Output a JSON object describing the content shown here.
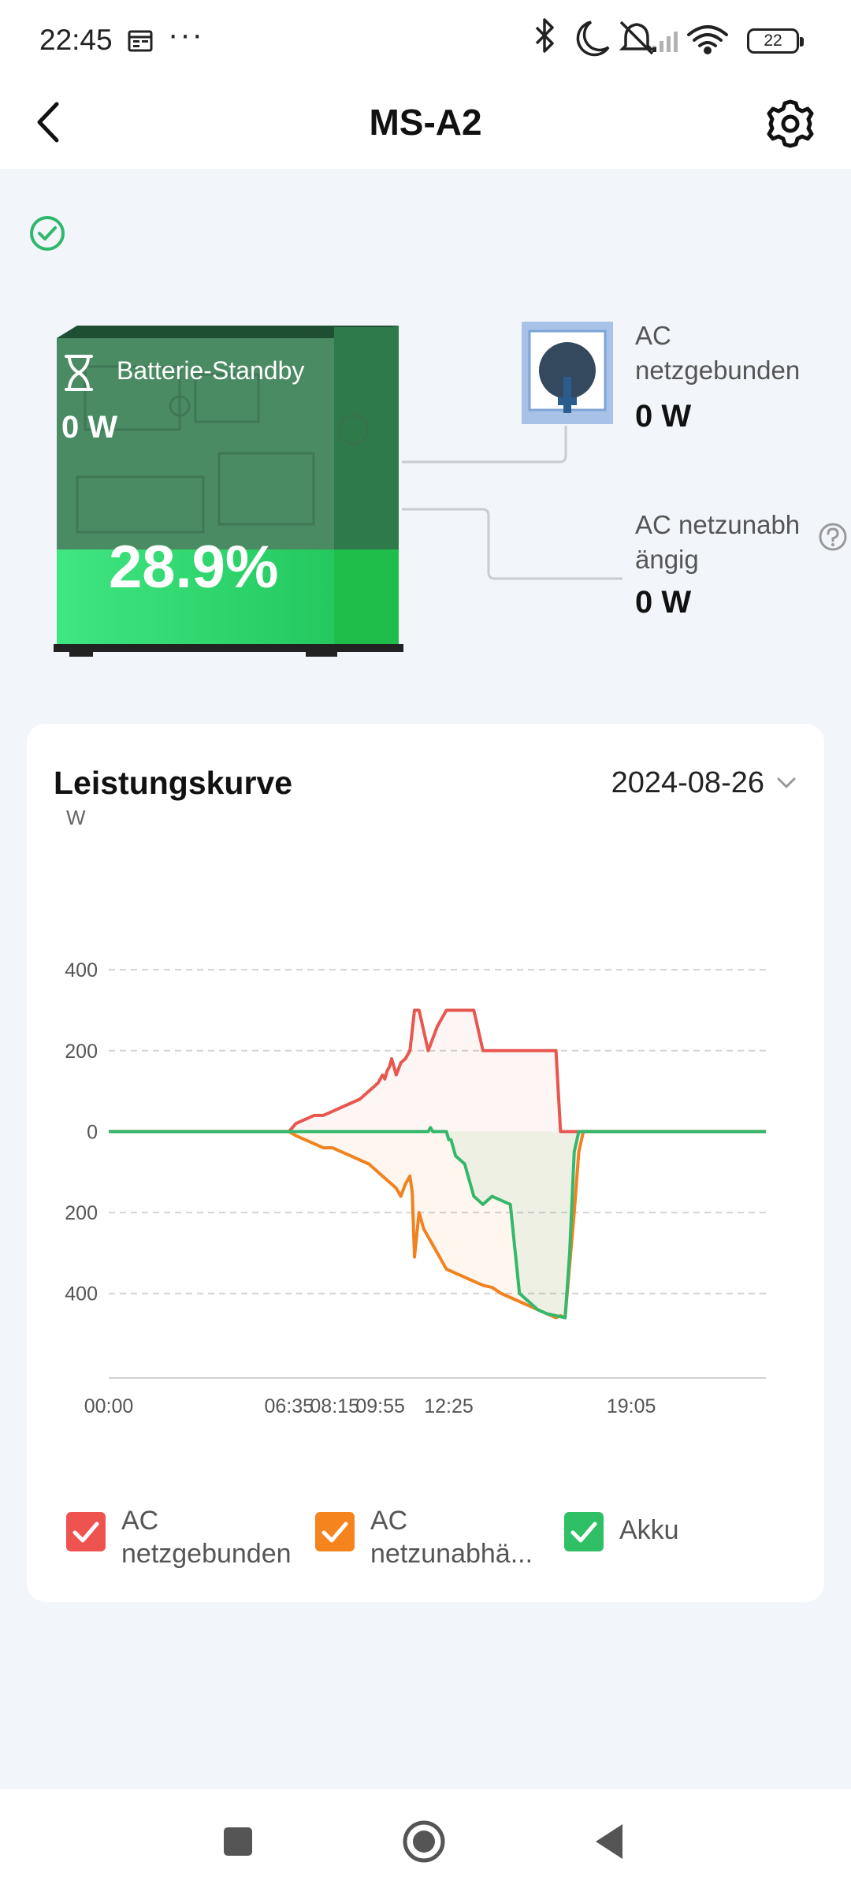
{
  "status_bar": {
    "time": "22:45",
    "more": "···",
    "battery_level": "22"
  },
  "header": {
    "title": "MS-A2"
  },
  "device": {
    "status_label": "Batterie-Standby",
    "power": "0 W",
    "soc": "28.9%",
    "soc_fraction": 0.289,
    "online": true
  },
  "outputs": {
    "grid_label": "AC netzgebunden",
    "grid_power": "0 W",
    "offgrid_label_line1": "AC netzunabh",
    "offgrid_label_line2": "ängig",
    "offgrid_power": "0 W"
  },
  "chart_card": {
    "title": "Leistungskurve",
    "date": "2024-08-26"
  },
  "chart_data": {
    "type": "area",
    "ylabel": "W",
    "yticks": [
      400,
      200,
      0,
      -200,
      -400
    ],
    "ytick_labels": [
      "400",
      "200",
      "0",
      "200",
      "400"
    ],
    "ylim": [
      -570,
      560
    ],
    "xlim": [
      0,
      1440
    ],
    "xtick_labels": [
      "00:00",
      "06:35",
      "08:15",
      "09:55",
      "12:25",
      "19:05"
    ],
    "xticks": [
      0,
      395,
      495,
      595,
      745,
      1145
    ],
    "grid": "dashed horizontal",
    "series": [
      {
        "name": "AC netzgebunden",
        "color": "#e8574f",
        "x": [
          0,
          395,
          410,
          430,
          450,
          470,
          490,
          510,
          530,
          550,
          560,
          570,
          580,
          590,
          600,
          605,
          610,
          615,
          620,
          630,
          640,
          650,
          660,
          665,
          670,
          680,
          700,
          720,
          740,
          760,
          770,
          780,
          790,
          800,
          820,
          830,
          838,
          840,
          860,
          880,
          900,
          920,
          940,
          960,
          980,
          990,
          1010,
          1020,
          1440
        ],
        "values": [
          0,
          0,
          20,
          30,
          40,
          40,
          50,
          60,
          70,
          80,
          90,
          100,
          110,
          120,
          140,
          130,
          150,
          160,
          180,
          140,
          170,
          180,
          200,
          250,
          300,
          300,
          200,
          260,
          300,
          300,
          300,
          300,
          300,
          300,
          200,
          200,
          200,
          200,
          200,
          200,
          200,
          200,
          200,
          200,
          200,
          0,
          0,
          0,
          0
        ]
      },
      {
        "name": "AC netzunabhängig",
        "color": "#f0821f",
        "x": [
          0,
          395,
          410,
          430,
          450,
          470,
          490,
          510,
          530,
          550,
          570,
          590,
          600,
          610,
          620,
          630,
          640,
          650,
          660,
          665,
          670,
          680,
          690,
          700,
          710,
          720,
          730,
          740,
          760,
          780,
          800,
          820,
          840,
          860,
          880,
          900,
          920,
          940,
          960,
          980,
          990,
          1000,
          1020,
          1030,
          1040,
          1440
        ],
        "values": [
          0,
          0,
          -10,
          -20,
          -30,
          -40,
          -40,
          -50,
          -60,
          -70,
          -80,
          -100,
          -110,
          -120,
          -130,
          -140,
          -160,
          -130,
          -110,
          -150,
          -310,
          -200,
          -240,
          -260,
          -280,
          -300,
          -320,
          -340,
          -350,
          -360,
          -370,
          -380,
          -385,
          -400,
          -410,
          -420,
          -430,
          -440,
          -450,
          -460,
          -455,
          -460,
          -200,
          -50,
          0,
          0
        ]
      },
      {
        "name": "Akku",
        "color": "#34b86b",
        "x": [
          0,
          700,
          705,
          710,
          720,
          740,
          745,
          750,
          760,
          780,
          790,
          800,
          810,
          820,
          840,
          860,
          880,
          900,
          920,
          930,
          940,
          960,
          980,
          1000,
          1010,
          1020,
          1030,
          1040,
          1440
        ],
        "values": [
          0,
          0,
          10,
          0,
          0,
          0,
          -20,
          -20,
          -60,
          -80,
          -120,
          -160,
          -170,
          -180,
          -160,
          -170,
          -180,
          -400,
          -420,
          -430,
          -440,
          -450,
          -455,
          -460,
          -300,
          -50,
          0,
          0,
          0
        ]
      }
    ]
  },
  "legend": {
    "items": [
      {
        "line1": "AC",
        "line2": "netzgebunden",
        "color": "#ef5350"
      },
      {
        "line1": "AC",
        "line2": "netzunabhä...",
        "color": "#f5841f"
      },
      {
        "line1": "Akku",
        "line2": "",
        "color": "#2fbf64"
      }
    ]
  },
  "icons": {
    "back": "back-arrow-icon",
    "settings": "gear-icon",
    "online": "check-circle-icon",
    "help": "question-icon",
    "socket": "power-plug-icon",
    "standby": "hourglass-icon"
  }
}
